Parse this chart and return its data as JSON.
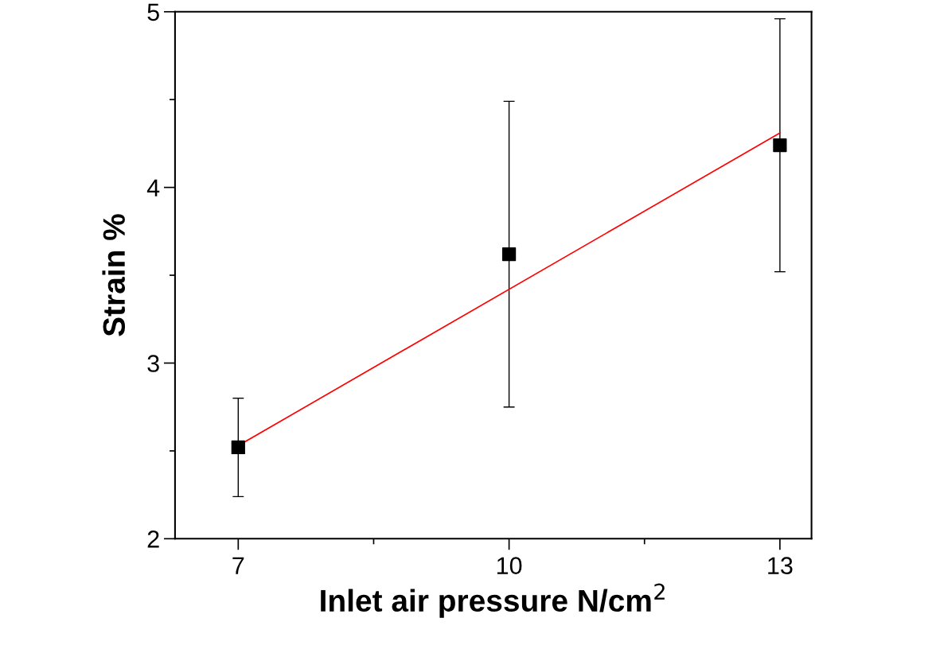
{
  "chart_data": {
    "type": "scatter",
    "xlabel": "Inlet air pressure N/cm$^{2}$",
    "ylabel": "Strain %",
    "xlim": [
      6.3,
      13.35
    ],
    "ylim": [
      2,
      5
    ],
    "xticks": [
      7,
      {
        "value": 8.5,
        "label": null
      },
      10,
      {
        "value": 11.5,
        "label": null
      },
      13
    ],
    "yticks": [
      2,
      {
        "value": 2.5,
        "label": null
      },
      3,
      {
        "value": 3.5,
        "label": null
      },
      4,
      {
        "value": 4.5,
        "label": null
      },
      5
    ],
    "grid": false,
    "legend": false,
    "series": [
      {
        "color": "#000000",
        "marker": "square",
        "x": [
          7,
          10,
          13
        ],
        "values": [
          2.52,
          3.62,
          4.24
        ],
        "errors": [
          [
            2.24,
            2.8
          ],
          [
            2.75,
            4.49
          ],
          [
            3.52,
            4.96
          ]
        ]
      },
      {
        "type": "line",
        "color": "#ff0000",
        "marker": "none",
        "line_style": "solid",
        "x": [
          7,
          13
        ],
        "values": [
          2.53,
          4.31
        ]
      }
    ]
  }
}
